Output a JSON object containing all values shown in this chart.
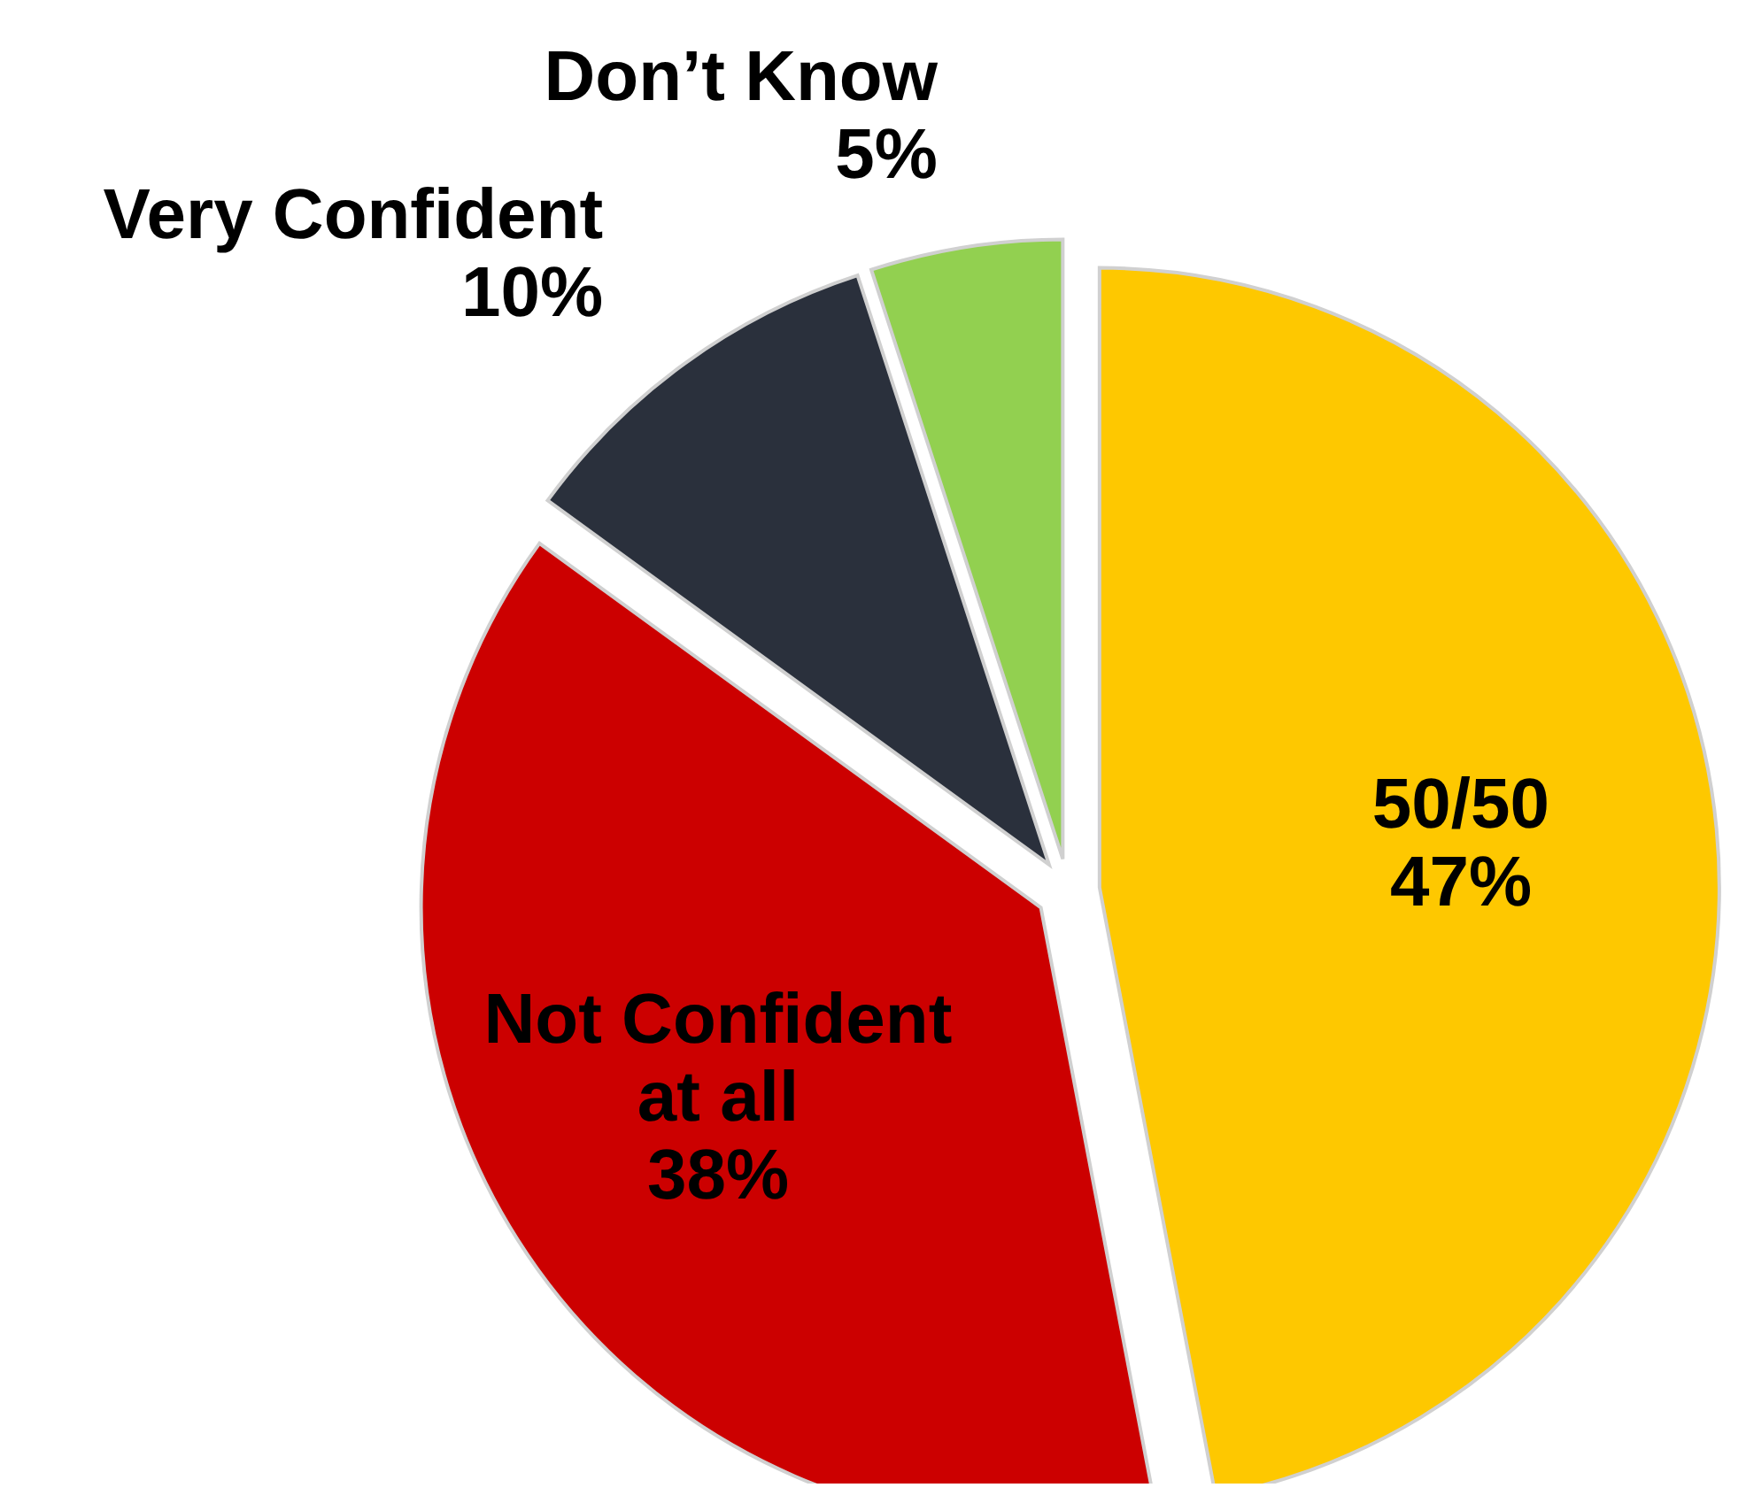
{
  "chart_data": {
    "type": "pie",
    "categories": [
      "50/50",
      "Not Confident at all",
      "Very Confident",
      "Don’t Know"
    ],
    "values": [
      47,
      38,
      10,
      5
    ],
    "value_labels": [
      "47%",
      "38%",
      "10%",
      "5%"
    ],
    "colors": [
      "#fec800",
      "#cc0000",
      "#2a303c",
      "#92d050"
    ]
  }
}
